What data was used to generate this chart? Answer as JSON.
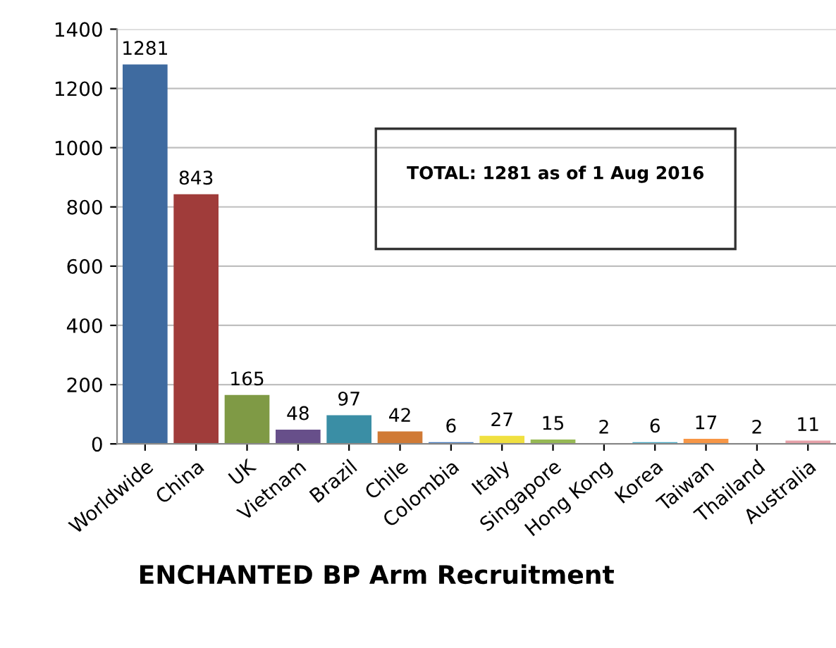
{
  "chart_data": {
    "type": "bar",
    "title": "ENCHANTED BP Arm Recruitment",
    "categories": [
      "Worldwide",
      "China",
      "UK",
      "Vietnam",
      "Brazil",
      "Chile",
      "Colombia",
      "Italy",
      "Singapore",
      "Hong Kong",
      "Korea",
      "Taiwan",
      "Thailand",
      "Australia"
    ],
    "values": [
      1281,
      843,
      165,
      48,
      97,
      42,
      6,
      27,
      15,
      2,
      6,
      17,
      2,
      11
    ],
    "colors": [
      "#3f6ba0",
      "#a03c3a",
      "#7f9a45",
      "#674f8a",
      "#3a8ea5",
      "#d07a35",
      "#4a7ec0",
      "#f0e040",
      "#96b954",
      "#c0504d",
      "#4bacc6",
      "#f79646",
      "#8c8c8c",
      "#e6a0a8"
    ],
    "ylim": [
      0,
      1400
    ],
    "yticks": [
      0,
      200,
      400,
      600,
      800,
      1000,
      1200,
      1400
    ],
    "grid": "y",
    "data_labels": true,
    "annotations": [
      "TOTAL: 1281 as of 1 Aug 2016"
    ]
  }
}
